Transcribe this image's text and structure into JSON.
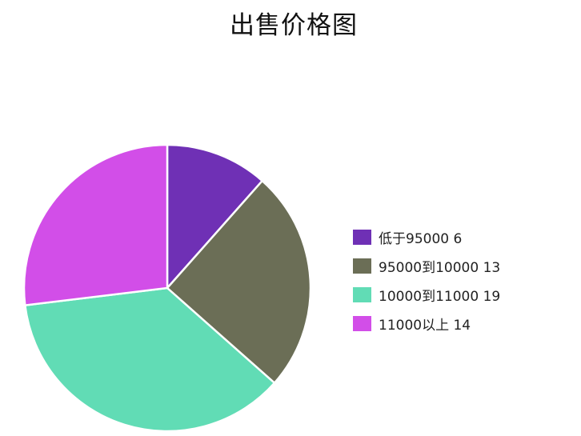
{
  "chart_data": {
    "type": "pie",
    "title": "出售价格图",
    "categories": [
      "低于95000",
      "95000到10000",
      "10000到11000",
      "11000以上"
    ],
    "values": [
      6,
      13,
      19,
      14
    ],
    "colors": [
      "#6f30b5",
      "#6b6e56",
      "#61dcb5",
      "#d24ee8"
    ],
    "legend_position": "right",
    "legend": [
      "低于95000 6",
      "95000到10000 13",
      "10000到11000 19",
      "11000以上 14"
    ]
  }
}
